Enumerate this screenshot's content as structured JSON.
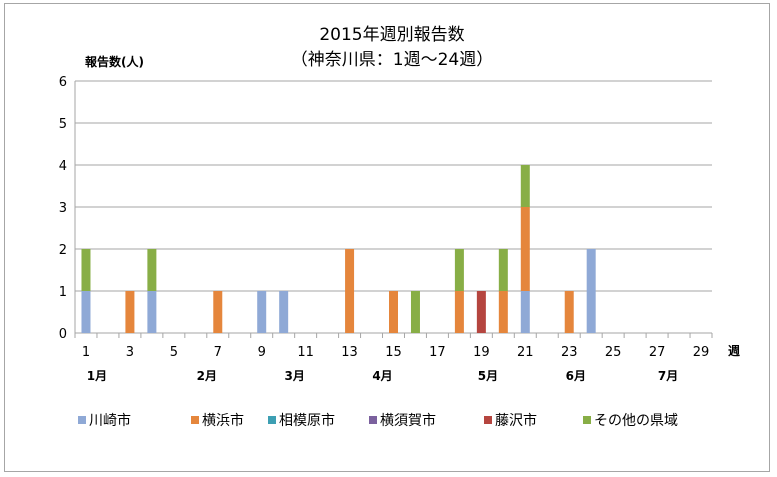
{
  "chart_data": {
    "type": "bar",
    "stacked": true,
    "title": [
      "2015年週別報告数",
      "（神奈川県：1週～24週）"
    ],
    "ylabel": "報告数(人)",
    "xlabel": "週",
    "ylim": [
      0,
      6
    ],
    "yticks": [
      0,
      1,
      2,
      3,
      4,
      5,
      6
    ],
    "xlim": [
      1,
      29
    ],
    "xticks": [
      1,
      3,
      5,
      7,
      9,
      11,
      13,
      15,
      17,
      19,
      21,
      23,
      25,
      27,
      29
    ],
    "months": [
      {
        "label": "1月",
        "week": 1.5
      },
      {
        "label": "2月",
        "week": 6.5
      },
      {
        "label": "3月",
        "week": 10.5
      },
      {
        "label": "4月",
        "week": 14.5
      },
      {
        "label": "5月",
        "week": 19.3
      },
      {
        "label": "6月",
        "week": 23.3
      },
      {
        "label": "7月",
        "week": 27.5
      }
    ],
    "grid": true,
    "legend_position": "bottom",
    "series": [
      {
        "name": "川崎市",
        "color": "#8fa9d6",
        "data": {
          "1": 1,
          "4": 1,
          "9": 1,
          "10": 1,
          "21": 1,
          "24": 2
        }
      },
      {
        "name": "横浜市",
        "color": "#e5863c",
        "data": {
          "3": 1,
          "7": 1,
          "13": 2,
          "15": 1,
          "18": 1,
          "20": 1,
          "21": 2,
          "23": 1
        }
      },
      {
        "name": "相模原市",
        "color": "#3d9fb3",
        "data": {}
      },
      {
        "name": "横須賀市",
        "color": "#7b619e",
        "data": {}
      },
      {
        "name": "藤沢市",
        "color": "#b5453f",
        "data": {
          "19": 1
        }
      },
      {
        "name": "その他の県域",
        "color": "#88ae46",
        "data": {
          "1": 1,
          "4": 1,
          "16": 1,
          "18": 1,
          "20": 1,
          "21": 1
        }
      }
    ]
  }
}
